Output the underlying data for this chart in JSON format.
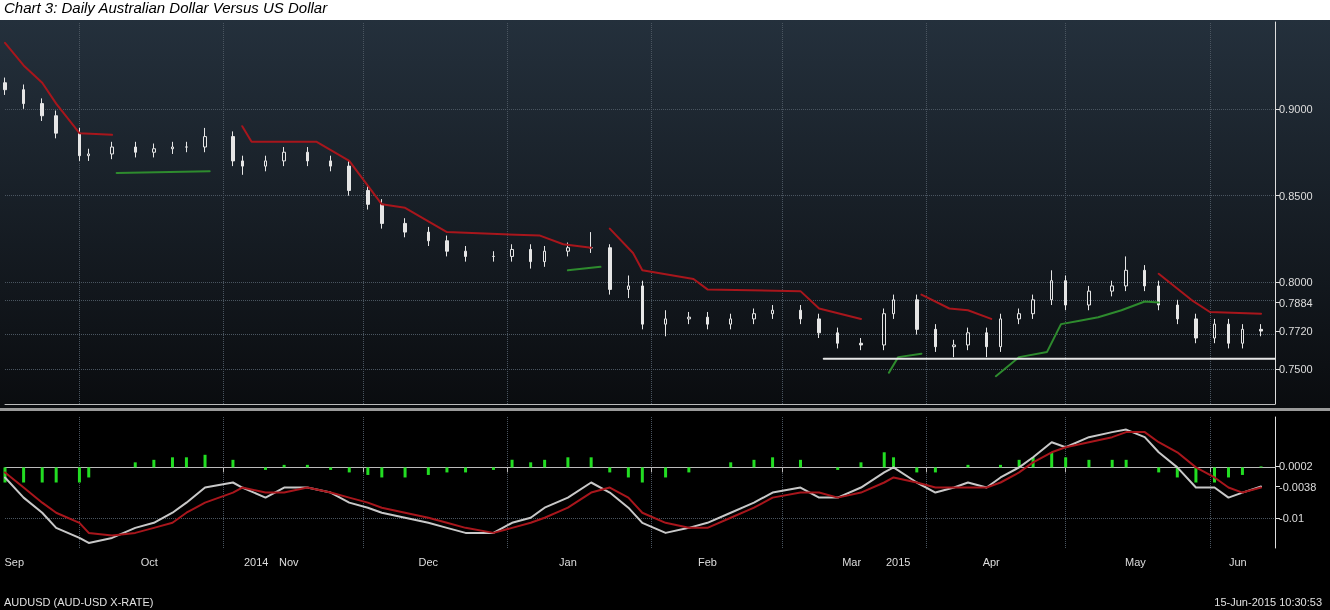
{
  "chart_data": [
    {
      "type": "candlestick",
      "title": "Chart 3: Daily Australian Dollar Versus US Dollar",
      "color": "#e6e6e6",
      "marker": "none",
      "grid": true,
      "tick_labels": "y",
      "x": [
        "2014-09-15",
        "2014-09-19",
        "2014-09-23",
        "2014-09-26",
        "2014-10-01",
        "2014-10-03",
        "2014-10-08",
        "2014-10-13",
        "2014-10-17",
        "2014-10-21",
        "2014-10-24",
        "2014-10-28",
        "2014-11-03",
        "2014-11-05",
        "2014-11-10",
        "2014-11-14",
        "2014-11-19",
        "2014-11-24",
        "2014-11-28",
        "2014-12-02",
        "2014-12-05",
        "2014-12-10",
        "2014-12-15",
        "2014-12-19",
        "2014-12-23",
        "2014-12-29",
        "2015-01-02",
        "2015-01-06",
        "2015-01-09",
        "2015-01-14",
        "2015-01-19",
        "2015-01-23",
        "2015-01-27",
        "2015-01-30",
        "2015-02-04",
        "2015-02-09",
        "2015-02-13",
        "2015-02-18",
        "2015-02-23",
        "2015-02-27",
        "2015-03-05",
        "2015-03-09",
        "2015-03-13",
        "2015-03-18",
        "2015-03-23",
        "2015-03-25",
        "2015-03-30",
        "2015-04-03",
        "2015-04-07",
        "2015-04-10",
        "2015-04-14",
        "2015-04-17",
        "2015-04-21",
        "2015-04-24",
        "2015-04-28",
        "2015-05-01",
        "2015-05-06",
        "2015-05-11",
        "2015-05-14",
        "2015-05-18",
        "2015-05-21",
        "2015-05-25",
        "2015-05-29",
        "2015-06-02",
        "2015-06-05",
        "2015-06-08",
        "2015-06-12"
      ],
      "ohlc": [
        [
          0.915,
          0.918,
          0.908,
          0.911
        ],
        [
          0.911,
          0.914,
          0.9,
          0.903
        ],
        [
          0.903,
          0.906,
          0.893,
          0.896
        ],
        [
          0.896,
          0.899,
          0.883,
          0.886
        ],
        [
          0.886,
          0.889,
          0.87,
          0.873
        ],
        [
          0.873,
          0.877,
          0.87,
          0.874
        ],
        [
          0.874,
          0.881,
          0.871,
          0.878
        ],
        [
          0.878,
          0.881,
          0.872,
          0.875
        ],
        [
          0.875,
          0.88,
          0.872,
          0.877
        ],
        [
          0.877,
          0.881,
          0.874,
          0.878
        ],
        [
          0.878,
          0.881,
          0.875,
          0.878
        ],
        [
          0.878,
          0.889,
          0.875,
          0.884
        ],
        [
          0.884,
          0.887,
          0.867,
          0.87
        ],
        [
          0.87,
          0.873,
          0.862,
          0.867
        ],
        [
          0.867,
          0.873,
          0.864,
          0.87
        ],
        [
          0.87,
          0.878,
          0.867,
          0.875
        ],
        [
          0.875,
          0.878,
          0.867,
          0.87
        ],
        [
          0.87,
          0.873,
          0.864,
          0.867
        ],
        [
          0.867,
          0.87,
          0.85,
          0.853
        ],
        [
          0.853,
          0.856,
          0.842,
          0.845
        ],
        [
          0.845,
          0.848,
          0.831,
          0.834
        ],
        [
          0.834,
          0.837,
          0.826,
          0.829
        ],
        [
          0.829,
          0.832,
          0.821,
          0.824
        ],
        [
          0.824,
          0.827,
          0.815,
          0.818
        ],
        [
          0.818,
          0.821,
          0.812,
          0.815
        ],
        [
          0.815,
          0.818,
          0.812,
          0.815
        ],
        [
          0.815,
          0.822,
          0.812,
          0.819
        ],
        [
          0.819,
          0.822,
          0.808,
          0.812
        ],
        [
          0.812,
          0.821,
          0.809,
          0.818
        ],
        [
          0.818,
          0.823,
          0.815,
          0.82
        ],
        [
          0.82,
          0.829,
          0.817,
          0.82
        ],
        [
          0.82,
          0.822,
          0.793,
          0.796
        ],
        [
          0.796,
          0.804,
          0.791,
          0.798
        ],
        [
          0.798,
          0.801,
          0.773,
          0.776
        ],
        [
          0.776,
          0.784,
          0.769,
          0.779
        ],
        [
          0.779,
          0.783,
          0.776,
          0.78
        ],
        [
          0.78,
          0.783,
          0.773,
          0.776
        ],
        [
          0.776,
          0.782,
          0.773,
          0.779
        ],
        [
          0.779,
          0.785,
          0.776,
          0.782
        ],
        [
          0.782,
          0.787,
          0.779,
          0.784
        ],
        [
          0.784,
          0.787,
          0.776,
          0.779
        ],
        [
          0.779,
          0.782,
          0.768,
          0.771
        ],
        [
          0.771,
          0.774,
          0.762,
          0.765
        ],
        [
          0.765,
          0.768,
          0.761,
          0.764
        ],
        [
          0.764,
          0.785,
          0.761,
          0.782
        ],
        [
          0.782,
          0.793,
          0.779,
          0.79
        ],
        [
          0.79,
          0.793,
          0.77,
          0.773
        ],
        [
          0.773,
          0.776,
          0.76,
          0.763
        ],
        [
          0.763,
          0.767,
          0.757,
          0.764
        ],
        [
          0.764,
          0.774,
          0.761,
          0.771
        ],
        [
          0.771,
          0.774,
          0.757,
          0.763
        ],
        [
          0.763,
          0.782,
          0.76,
          0.779
        ],
        [
          0.779,
          0.785,
          0.776,
          0.782
        ],
        [
          0.782,
          0.793,
          0.779,
          0.79
        ],
        [
          0.79,
          0.807,
          0.787,
          0.801
        ],
        [
          0.801,
          0.804,
          0.784,
          0.787
        ],
        [
          0.787,
          0.798,
          0.784,
          0.795
        ],
        [
          0.795,
          0.801,
          0.792,
          0.798
        ],
        [
          0.798,
          0.815,
          0.795,
          0.807
        ],
        [
          0.807,
          0.81,
          0.795,
          0.798
        ],
        [
          0.798,
          0.801,
          0.784,
          0.787
        ],
        [
          0.787,
          0.79,
          0.776,
          0.779
        ],
        [
          0.779,
          0.782,
          0.765,
          0.768
        ],
        [
          0.768,
          0.779,
          0.765,
          0.776
        ],
        [
          0.776,
          0.779,
          0.762,
          0.765
        ],
        [
          0.765,
          0.776,
          0.762,
          0.773
        ],
        [
          0.773,
          0.776,
          0.769,
          0.772
        ]
      ],
      "series": [
        {
          "type": "line",
          "color": "#a8161c",
          "x": [
            "2014-09-15",
            "2014-09-19",
            "2014-09-23",
            "2014-09-26",
            "2014-10-01",
            "2014-10-08",
            "2014-10-10",
            "2014-11-05",
            "2014-11-07",
            "2014-11-21",
            "2014-11-28",
            "2014-12-05",
            "2014-12-10",
            "2014-12-19",
            "2015-01-08",
            "2015-01-13",
            "2015-01-19",
            "2015-01-21",
            "2015-01-23",
            "2015-01-28",
            "2015-01-30",
            "2015-02-10",
            "2015-02-13",
            "2015-03-05",
            "2015-03-09",
            "2015-03-18",
            "2015-03-20",
            "2015-03-31",
            "2015-04-06",
            "2015-04-10",
            "2015-04-15",
            "2015-04-17",
            "2015-05-21",
            "2015-05-28",
            "2015-06-01",
            "2015-06-12"
          ],
          "values": [
            0.938,
            0.925,
            0.915,
            0.903,
            0.886,
            0.885,
            null,
            0.89,
            0.881,
            0.881,
            0.87,
            0.845,
            0.843,
            0.829,
            0.827,
            0.822,
            0.82,
            null,
            0.831,
            0.817,
            0.807,
            0.802,
            0.796,
            0.795,
            0.785,
            0.779,
            null,
            0.793,
            0.785,
            0.784,
            0.779,
            null,
            0.805,
            0.79,
            0.783,
            0.782
          ]
        },
        {
          "type": "line",
          "color": "#2e8b2e",
          "x": [
            "2014-10-09",
            "2014-10-29",
            "2014-10-31",
            "2015-01-14",
            "2015-01-21",
            "2015-01-22",
            "2015-03-24",
            "2015-03-26",
            "2015-03-31",
            "2015-04-02",
            "2015-04-16",
            "2015-04-21",
            "2015-04-27",
            "2015-04-30",
            "2015-05-04",
            "2015-05-08",
            "2015-05-13",
            "2015-05-18",
            "2015-05-21"
          ],
          "values": [
            0.863,
            0.864,
            null,
            0.807,
            0.809,
            null,
            0.748,
            0.757,
            0.759,
            null,
            0.746,
            0.757,
            0.76,
            0.776,
            0.778,
            0.78,
            0.784,
            0.789,
            0.7884
          ]
        },
        {
          "type": "line",
          "color": "#e6e6e6",
          "x": [
            "2015-03-10",
            "2015-06-15"
          ],
          "values": [
            0.756,
            0.756
          ]
        }
      ],
      "xlim": [
        "2014-09-15",
        "2015-06-15"
      ],
      "xticks": [
        {
          "value": "2014-10-01",
          "label": null
        },
        {
          "value": "2014-11-01",
          "label": null
        },
        {
          "value": "2014-12-01",
          "label": null
        },
        {
          "value": "2015-01-01",
          "label": null
        },
        {
          "value": "2015-02-01",
          "label": null
        },
        {
          "value": "2015-03-01",
          "label": null
        },
        {
          "value": "2015-04-01",
          "label": null
        },
        {
          "value": "2015-05-01",
          "label": null
        },
        {
          "value": "2015-06-01",
          "label": null
        }
      ],
      "ylim": [
        0.73,
        0.95
      ],
      "yticks": [
        {
          "value": 0.75,
          "label": "0.7500"
        },
        {
          "value": 0.772,
          "label": "0.7720"
        },
        {
          "value": 0.7884,
          "label": "0.7884"
        },
        {
          "value": 0.8,
          "label": "0.8000"
        },
        {
          "value": 0.85,
          "label": "0.8500"
        },
        {
          "value": 0.9,
          "label": "0.9000"
        }
      ]
    },
    {
      "type": "bar",
      "marker": "none",
      "grid": true,
      "x": [
        "2014-09-15",
        "2014-09-19",
        "2014-09-23",
        "2014-09-26",
        "2014-10-01",
        "2014-10-03",
        "2014-10-08",
        "2014-10-13",
        "2014-10-17",
        "2014-10-21",
        "2014-10-24",
        "2014-10-28",
        "2014-11-03",
        "2014-11-05",
        "2014-11-10",
        "2014-11-14",
        "2014-11-19",
        "2014-11-24",
        "2014-11-28",
        "2014-12-02",
        "2014-12-05",
        "2014-12-10",
        "2014-12-15",
        "2014-12-19",
        "2014-12-23",
        "2014-12-29",
        "2015-01-02",
        "2015-01-06",
        "2015-01-09",
        "2015-01-14",
        "2015-01-19",
        "2015-01-23",
        "2015-01-27",
        "2015-01-30",
        "2015-02-04",
        "2015-02-09",
        "2015-02-13",
        "2015-02-18",
        "2015-02-23",
        "2015-02-27",
        "2015-03-05",
        "2015-03-09",
        "2015-03-13",
        "2015-03-18",
        "2015-03-23",
        "2015-03-25",
        "2015-03-30",
        "2015-04-03",
        "2015-04-07",
        "2015-04-10",
        "2015-04-14",
        "2015-04-17",
        "2015-04-21",
        "2015-04-24",
        "2015-04-28",
        "2015-05-01",
        "2015-05-06",
        "2015-05-11",
        "2015-05-14",
        "2015-05-18",
        "2015-05-21",
        "2015-05-25",
        "2015-05-29",
        "2015-06-02",
        "2015-06-05",
        "2015-06-08",
        "2015-06-12"
      ],
      "series": [
        {
          "color": "#22dd22",
          "values": [
            -0.003,
            -0.003,
            -0.003,
            -0.003,
            -0.003,
            -0.002,
            0.0,
            0.001,
            0.0015,
            0.002,
            0.002,
            0.0025,
            0.0015,
            0.0,
            -0.0005,
            0.0005,
            0.0005,
            -0.0005,
            -0.001,
            -0.0015,
            -0.002,
            -0.002,
            -0.0015,
            -0.001,
            -0.001,
            -0.0005,
            0.0015,
            0.001,
            0.0015,
            0.002,
            0.002,
            -0.001,
            -0.002,
            -0.003,
            -0.002,
            -0.001,
            0.0,
            0.001,
            0.0015,
            0.002,
            0.0015,
            0.0,
            -0.0005,
            0.001,
            0.003,
            0.002,
            -0.001,
            -0.001,
            0.0,
            0.0005,
            0.0,
            0.0005,
            0.0015,
            0.002,
            0.003,
            0.002,
            0.0015,
            0.0015,
            0.0015,
            0.0,
            -0.001,
            -0.002,
            -0.003,
            -0.003,
            -0.002,
            -0.0015,
            0.0002
          ]
        },
        {
          "type": "line",
          "color": "#c8c8c8",
          "values": [
            -0.002,
            -0.006,
            -0.009,
            -0.012,
            -0.014,
            -0.015,
            -0.014,
            -0.012,
            -0.011,
            -0.009,
            -0.007,
            -0.004,
            -0.003,
            -0.004,
            -0.006,
            -0.004,
            -0.004,
            -0.005,
            -0.007,
            -0.008,
            -0.009,
            -0.01,
            -0.011,
            -0.012,
            -0.013,
            -0.013,
            -0.011,
            -0.01,
            -0.008,
            -0.006,
            -0.003,
            -0.005,
            -0.008,
            -0.011,
            -0.013,
            -0.012,
            -0.011,
            -0.009,
            -0.007,
            -0.005,
            -0.004,
            -0.006,
            -0.006,
            -0.004,
            -0.001,
            0.0,
            -0.003,
            -0.005,
            -0.004,
            -0.003,
            -0.004,
            -0.002,
            0.0,
            0.002,
            0.005,
            0.004,
            0.006,
            0.007,
            0.0075,
            0.006,
            0.003,
            0.0,
            -0.004,
            -0.004,
            -0.006,
            -0.005,
            -0.0038
          ]
        },
        {
          "type": "line",
          "color": "#a8161c",
          "values": [
            -0.001,
            -0.004,
            -0.007,
            -0.009,
            -0.011,
            -0.013,
            -0.0135,
            -0.013,
            -0.012,
            -0.011,
            -0.009,
            -0.007,
            -0.005,
            -0.004,
            -0.005,
            -0.005,
            -0.004,
            -0.005,
            -0.006,
            -0.007,
            -0.008,
            -0.009,
            -0.01,
            -0.011,
            -0.012,
            -0.013,
            -0.012,
            -0.011,
            -0.01,
            -0.008,
            -0.005,
            -0.004,
            -0.006,
            -0.009,
            -0.011,
            -0.012,
            -0.012,
            -0.01,
            -0.008,
            -0.006,
            -0.005,
            -0.005,
            -0.006,
            -0.005,
            -0.003,
            -0.002,
            -0.003,
            -0.004,
            -0.004,
            -0.004,
            -0.004,
            -0.003,
            -0.001,
            0.001,
            0.003,
            0.004,
            0.005,
            0.006,
            0.007,
            0.007,
            0.005,
            0.003,
            0.0,
            -0.002,
            -0.004,
            -0.005,
            -0.004
          ]
        }
      ],
      "xlim": [
        "2014-09-15",
        "2015-06-15"
      ],
      "xticks": [
        {
          "value": "2014-09-17",
          "label": "Sep"
        },
        {
          "value": "2014-10-01",
          "label": null
        },
        {
          "value": "2014-10-16",
          "label": "Oct"
        },
        {
          "value": "2014-11-01",
          "label": null
        },
        {
          "value": "2014-11-08",
          "label": "2014"
        },
        {
          "value": "2014-11-15",
          "label": "Nov"
        },
        {
          "value": "2014-12-01",
          "label": null
        },
        {
          "value": "2014-12-15",
          "label": "Dec"
        },
        {
          "value": "2015-01-01",
          "label": null
        },
        {
          "value": "2015-01-14",
          "label": "Jan"
        },
        {
          "value": "2015-02-01",
          "label": null
        },
        {
          "value": "2015-02-13",
          "label": "Feb"
        },
        {
          "value": "2015-03-01",
          "label": null
        },
        {
          "value": "2015-03-16",
          "label": "Mar"
        },
        {
          "value": "2015-03-26",
          "label": "2015"
        },
        {
          "value": "2015-04-01",
          "label": null
        },
        {
          "value": "2015-04-15",
          "label": "Apr"
        },
        {
          "value": "2015-05-01",
          "label": null
        },
        {
          "value": "2015-05-16",
          "label": "May"
        },
        {
          "value": "2015-06-01",
          "label": null
        },
        {
          "value": "2015-06-07",
          "label": "Jun"
        }
      ],
      "ylim": [
        -0.016,
        0.01
      ],
      "yticks": [
        {
          "value": 0.0002,
          "label": "0.0002"
        },
        {
          "value": -0.0038,
          "label": "-0.0038"
        },
        {
          "value": -0.01,
          "label": "-0.01"
        }
      ],
      "annotations": [
        "AUDUSD (AUD-USD X-RATE)",
        "15-Jun-2015 10:30:53"
      ]
    }
  ]
}
